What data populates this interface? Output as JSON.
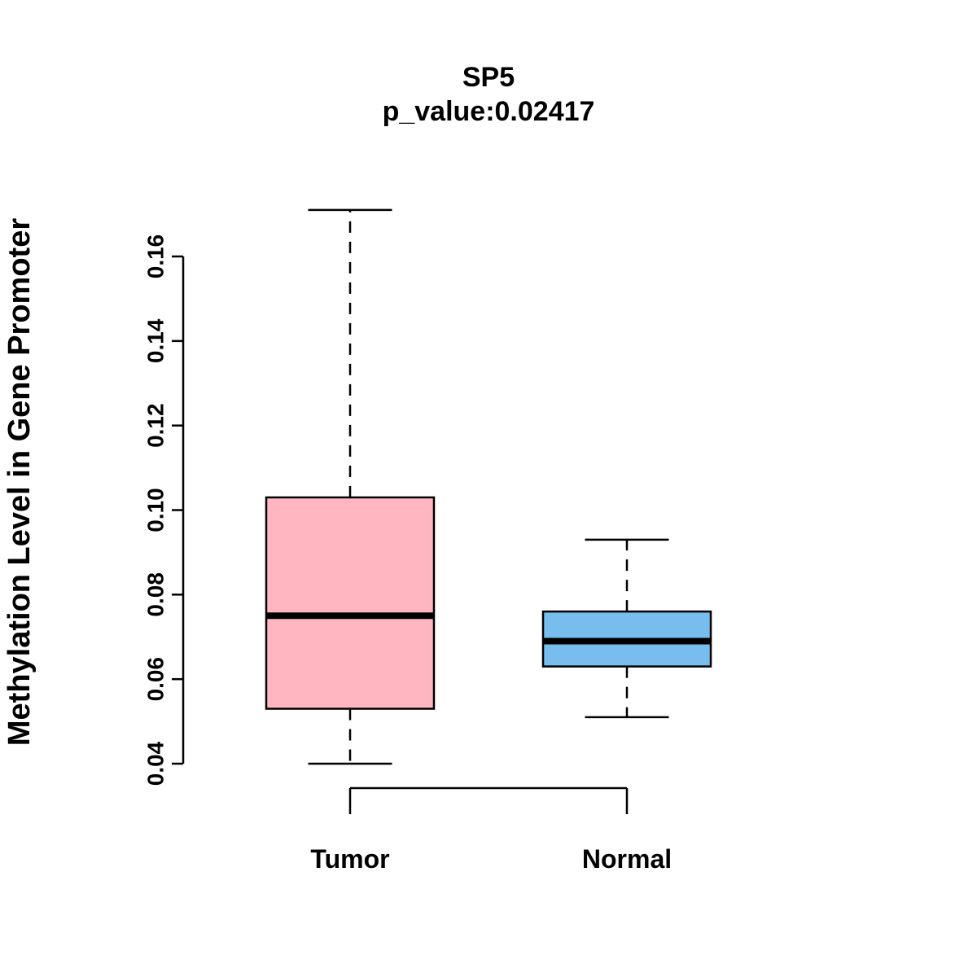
{
  "chart_data": {
    "type": "boxplot",
    "title": "SP5",
    "subtitle": "p_value:0.02417",
    "xlabel": "",
    "ylabel": "Methylation Level in Gene Promoter",
    "y_ticks": [
      "0.04",
      "0.06",
      "0.08",
      "0.10",
      "0.12",
      "0.14",
      "0.16"
    ],
    "ylim": [
      0.04,
      0.171
    ],
    "grid": false,
    "legend": "none",
    "categories": [
      "Tumor",
      "Normal"
    ],
    "series": [
      {
        "name": "Tumor",
        "lower_whisker": 0.04,
        "q1": 0.053,
        "median": 0.075,
        "q3": 0.103,
        "upper_whisker": 0.171,
        "fill_color": "#FFB6C1"
      },
      {
        "name": "Normal",
        "lower_whisker": 0.051,
        "q1": 0.063,
        "median": 0.069,
        "q3": 0.076,
        "upper_whisker": 0.093,
        "fill_color": "#77BDEE"
      }
    ],
    "stroke_color": "#000000",
    "background_color": "#FFFFFF"
  }
}
